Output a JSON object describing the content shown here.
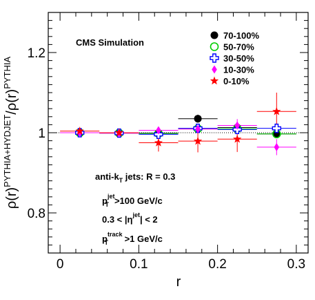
{
  "chart_data": {
    "type": "scatter",
    "title": "",
    "xlabel": "r",
    "ylabel": "ρ(r)^PYTHIA+HYDJET/ρ(r)^PYTHIA",
    "ylabel_parts": {
      "rho": "ρ(r)",
      "sup1": "PYTHIA+HYDJET",
      "slash": "/ρ(r)",
      "sup2": "PYTHIA"
    },
    "xlim": [
      -0.015,
      0.315
    ],
    "ylim": [
      0.7,
      1.3
    ],
    "x_ticks": [
      "0",
      "0.1",
      "0.2",
      "0.3"
    ],
    "y_ticks": [
      "0.8",
      "1",
      "1.2"
    ],
    "reference_line": 1,
    "grid": false,
    "legend_position": "top-right",
    "series": [
      {
        "name": "70-100%",
        "color": "#000000",
        "marker": "filled-circle",
        "x": [
          0.025,
          0.075,
          0.125,
          0.175,
          0.225,
          0.275
        ],
        "y": [
          1.0,
          1.0,
          0.999,
          1.035,
          1.013,
          0.997
        ],
        "yerr": [
          0.004,
          0.004,
          0.007,
          0.01,
          0.011,
          0.01
        ]
      },
      {
        "name": "50-70%",
        "color": "#00cc00",
        "marker": "open-circle",
        "x": [
          0.025,
          0.075,
          0.125,
          0.175,
          0.225,
          0.275
        ],
        "y": [
          1.0,
          0.999,
          0.998,
          1.01,
          1.01,
          0.997
        ],
        "yerr": [
          0.003,
          0.003,
          0.006,
          0.008,
          0.009,
          0.01
        ]
      },
      {
        "name": "30-50%",
        "color": "#0000ff",
        "marker": "open-cross",
        "x": [
          0.025,
          0.075,
          0.125,
          0.175,
          0.225,
          0.275
        ],
        "y": [
          1.0,
          0.999,
          0.996,
          1.011,
          1.008,
          1.011
        ],
        "yerr": [
          0.003,
          0.003,
          0.006,
          0.008,
          0.01,
          0.012
        ]
      },
      {
        "name": "10-30%",
        "color": "#ff00ff",
        "marker": "filled-diamond",
        "x": [
          0.025,
          0.075,
          0.125,
          0.175,
          0.225,
          0.275
        ],
        "y": [
          1.0,
          0.999,
          1.006,
          1.009,
          1.018,
          0.964
        ],
        "yerr": [
          0.004,
          0.004,
          0.008,
          0.012,
          0.016,
          0.02
        ]
      },
      {
        "name": "0-10%",
        "color": "#ff0000",
        "marker": "filled-star",
        "x": [
          0.025,
          0.075,
          0.125,
          0.175,
          0.225,
          0.275
        ],
        "y": [
          1.004,
          1.0,
          0.975,
          0.979,
          0.984,
          1.053
        ],
        "yerr": [
          0.006,
          0.006,
          0.022,
          0.028,
          0.032,
          0.047
        ]
      }
    ],
    "annotations": {
      "cms": "CMS Simulation",
      "jets_main": "anti-k",
      "jets_sub": "T",
      "jets_tail": " jets: R = 0.3",
      "pt_main": "p",
      "pt_sub": "T",
      "pt_sup": "jet",
      "pt_tail": ">100 GeV/c",
      "eta_head": "0.3 < |η",
      "eta_sup": "jet",
      "eta_tail": "| < 2",
      "trk_main": "p",
      "trk_sub": "T",
      "trk_sup": "track",
      "trk_tail": " >1 GeV/c"
    }
  }
}
